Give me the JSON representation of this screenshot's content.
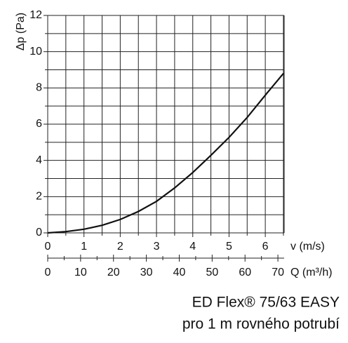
{
  "chart_data": {
    "type": "line",
    "title": "ED Flex® 75/63 EASY",
    "subtitle": "pro 1 m rovného potrubí",
    "y_label": "Δp (Pa)",
    "x_label": "v (m/s)",
    "x2_label": "Q (m³/h)",
    "x": [
      0,
      0.5,
      1,
      1.5,
      2,
      2.5,
      3,
      3.5,
      4,
      4.5,
      5,
      5.5,
      6,
      6.5
    ],
    "series": [
      {
        "name": "Δp",
        "color": "#111111",
        "values": [
          0,
          0.07,
          0.2,
          0.42,
          0.74,
          1.18,
          1.74,
          2.48,
          3.33,
          4.28,
          5.27,
          6.37,
          7.6,
          8.8
        ]
      }
    ],
    "xlim": [
      0,
      6.52
    ],
    "xticks": [
      0,
      1,
      2,
      3,
      4,
      5,
      6
    ],
    "x2lim": [
      0,
      71.9
    ],
    "x2ticks": [
      0,
      10,
      20,
      30,
      40,
      50,
      60,
      70
    ],
    "ylim": [
      0,
      12
    ],
    "yticks": [
      0,
      2,
      4,
      6,
      8,
      10,
      12
    ],
    "grid": true
  }
}
